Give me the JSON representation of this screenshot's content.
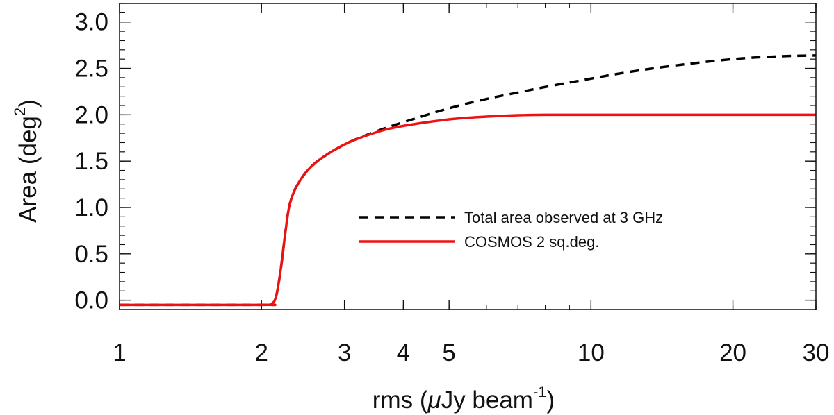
{
  "chart_data": {
    "type": "line",
    "xscale": "log",
    "xlim": [
      1,
      30
    ],
    "ylim": [
      -0.1,
      3.2
    ],
    "xlabel": {
      "main": "rms (",
      "mu": "μ",
      "unit": "Jy beam",
      "exp": "-1",
      "close": ")"
    },
    "ylabel": {
      "main": "Area (deg",
      "exp": "2",
      "close": ")"
    },
    "x_ticks": [
      {
        "value": 1,
        "label": "1"
      },
      {
        "value": 2,
        "label": "2"
      },
      {
        "value": 3,
        "label": "3"
      },
      {
        "value": 4,
        "label": "4"
      },
      {
        "value": 5,
        "label": "5"
      },
      {
        "value": 10,
        "label": "10"
      },
      {
        "value": 20,
        "label": "20"
      },
      {
        "value": 30,
        "label": "30"
      }
    ],
    "y_ticks": [
      {
        "value": 0.0,
        "label": "0.0"
      },
      {
        "value": 0.5,
        "label": "0.5"
      },
      {
        "value": 1.0,
        "label": "1.0"
      },
      {
        "value": 1.5,
        "label": "1.5"
      },
      {
        "value": 2.0,
        "label": "2.0"
      },
      {
        "value": 2.5,
        "label": "2.5"
      },
      {
        "value": 3.0,
        "label": "3.0"
      }
    ],
    "legend_position": "center-right",
    "series": [
      {
        "name": "Total area observed at 3 GHz",
        "color": "#000000",
        "style": "dashed",
        "x": [
          1.0,
          2.0,
          2.1,
          2.15,
          2.2,
          2.25,
          2.3,
          2.4,
          2.6,
          3.0,
          3.5,
          4.0,
          5.0,
          6.0,
          7.0,
          8.0,
          10.0,
          12.0,
          15.0,
          20.0,
          25.0,
          30.0
        ],
        "y": [
          -0.05,
          -0.05,
          -0.04,
          0.05,
          0.35,
          0.75,
          1.05,
          1.27,
          1.48,
          1.68,
          1.82,
          1.92,
          2.07,
          2.17,
          2.24,
          2.3,
          2.39,
          2.46,
          2.53,
          2.6,
          2.63,
          2.64
        ]
      },
      {
        "name": "COSMOS 2 sq.deg.",
        "color": "#ee1111",
        "style": "solid",
        "x": [
          1.0,
          2.0,
          2.1,
          2.15,
          2.2,
          2.25,
          2.3,
          2.4,
          2.6,
          3.0,
          3.5,
          4.0,
          5.0,
          6.0,
          7.0,
          8.0,
          10.0,
          15.0,
          20.0,
          30.0
        ],
        "y": [
          -0.05,
          -0.05,
          -0.04,
          0.05,
          0.35,
          0.75,
          1.05,
          1.27,
          1.48,
          1.68,
          1.81,
          1.88,
          1.95,
          1.98,
          1.995,
          2.0,
          2.0,
          2.0,
          2.0,
          2.0
        ]
      }
    ]
  }
}
